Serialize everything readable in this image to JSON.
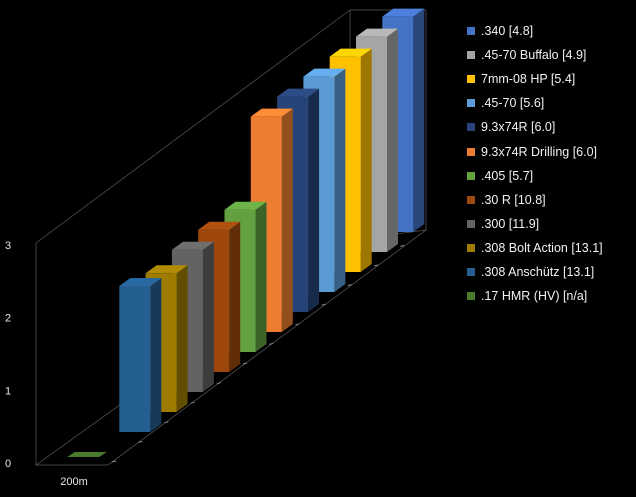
{
  "chart_data": {
    "type": "bar",
    "projection": "3d-column",
    "categories": [
      "200m"
    ],
    "yticks": [
      "0",
      "1",
      "2",
      "3"
    ],
    "ylim": [
      0,
      3
    ],
    "grid": false,
    "legend_position": "right",
    "series": [
      {
        "name": ".17 HMR (HV) [n/a]",
        "values": [
          0
        ],
        "color": "#4a7a2c"
      },
      {
        "name": ".308 Anschütz [13.1]",
        "values": [
          2.0
        ],
        "color": "#255e91"
      },
      {
        "name": ".308 Bolt Action [13.1]",
        "values": [
          1.9
        ],
        "color": "#9e7c00"
      },
      {
        "name": ".300 [11.9]",
        "values": [
          1.95
        ],
        "color": "#636363"
      },
      {
        "name": ".30 R [10.8]",
        "values": [
          1.95
        ],
        "color": "#9e480e"
      },
      {
        "name": ".405 [5.7]",
        "values": [
          1.95
        ],
        "color": "#62a040"
      },
      {
        "name": "9.3x74R Drilling [6.0]",
        "values": [
          2.95
        ],
        "color": "#ed7d31"
      },
      {
        "name": "9.3x74R [6.0]",
        "values": [
          2.95
        ],
        "color": "#264478"
      },
      {
        "name": ".45-70 [5.6]",
        "values": [
          2.95
        ],
        "color": "#5b9bd5"
      },
      {
        "name": "7mm-08 HP [5.4]",
        "values": [
          2.95
        ],
        "color": "#ffc000"
      },
      {
        "name": ".45-70 Buffalo [4.9]",
        "values": [
          2.95
        ],
        "color": "#a5a5a5"
      },
      {
        "name": ".340 [4.8]",
        "values": [
          2.95
        ],
        "color": "#4472c4"
      }
    ]
  }
}
